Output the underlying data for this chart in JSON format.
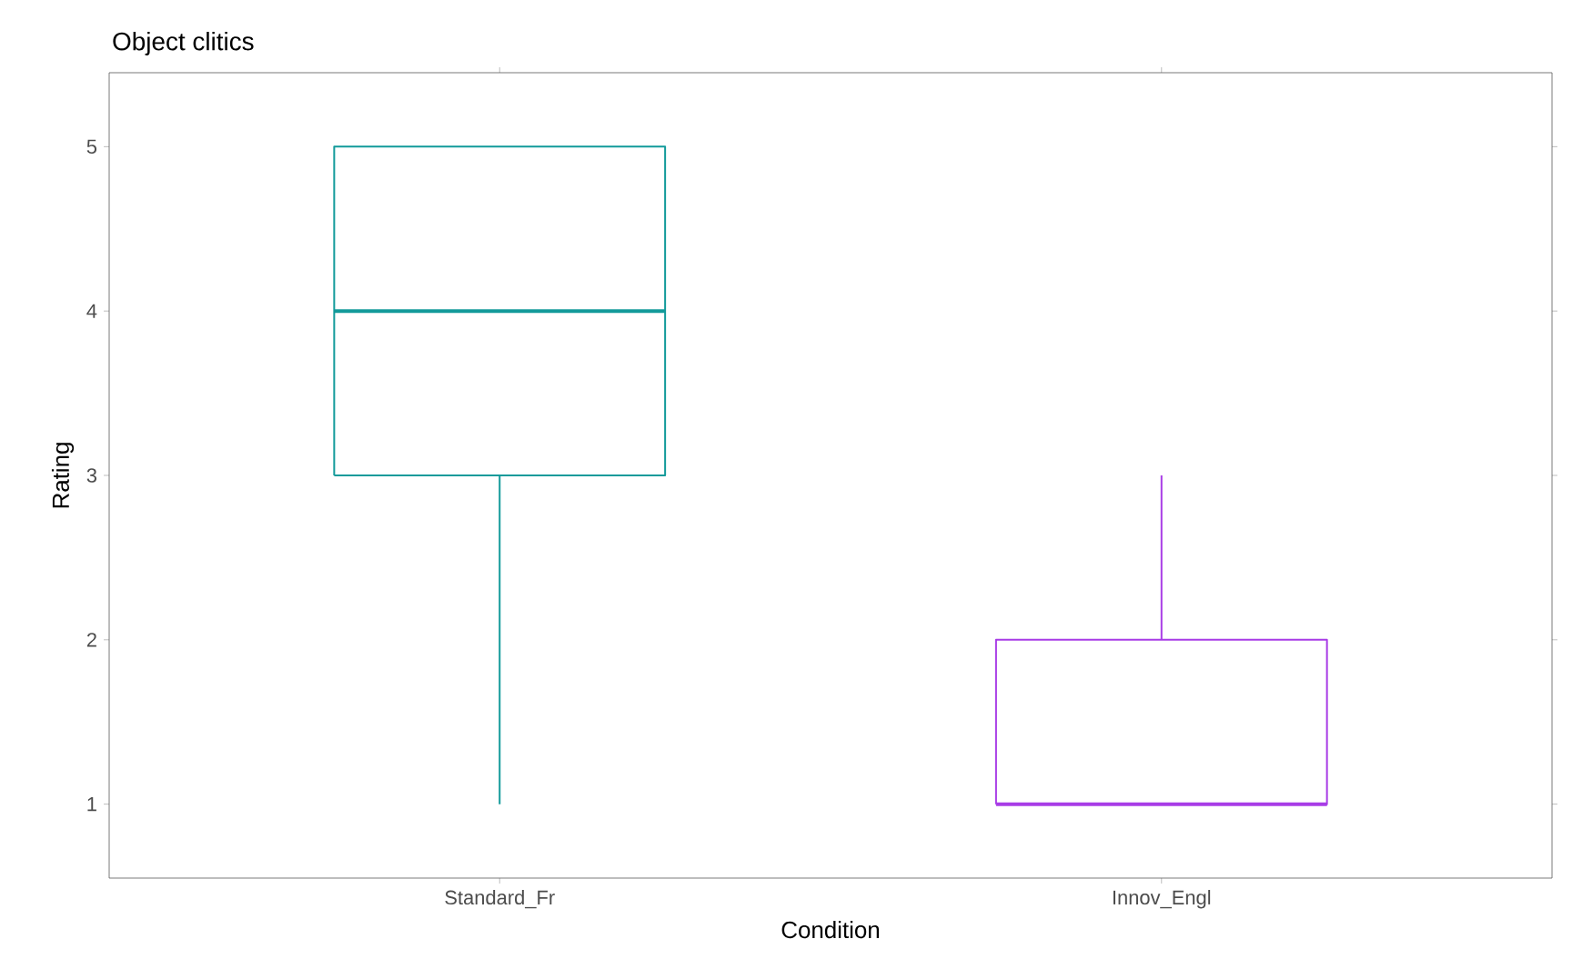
{
  "chart_data": {
    "type": "box",
    "title": "Object clitics",
    "xlabel": "Condition",
    "ylabel": "Rating",
    "categories": [
      "Standard_Fr",
      "Innov_Engl"
    ],
    "boxes": [
      {
        "low": 1,
        "q1": 3,
        "median": 4,
        "q3": 5,
        "high": 5
      },
      {
        "low": 1,
        "q1": 1,
        "median": 1,
        "q3": 2,
        "high": 3
      }
    ],
    "colors": [
      "#129a9a",
      "#a83ce6"
    ],
    "ylim": [
      0.55,
      5.45
    ],
    "yticks": [
      1,
      2,
      3,
      4,
      5
    ],
    "grid": false
  }
}
